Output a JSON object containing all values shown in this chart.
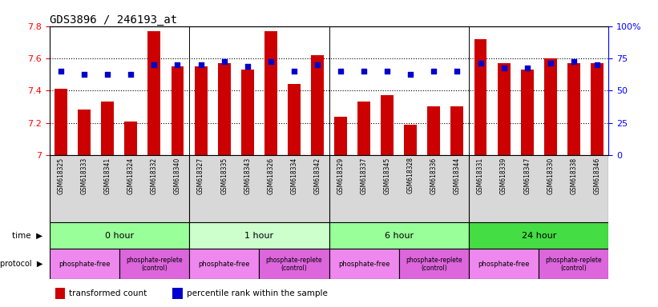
{
  "title": "GDS3896 / 246193_at",
  "samples": [
    "GSM618325",
    "GSM618333",
    "GSM618341",
    "GSM618324",
    "GSM618332",
    "GSM618340",
    "GSM618327",
    "GSM618335",
    "GSM618343",
    "GSM618326",
    "GSM618334",
    "GSM618342",
    "GSM618329",
    "GSM618337",
    "GSM618345",
    "GSM618328",
    "GSM618336",
    "GSM618344",
    "GSM618331",
    "GSM618339",
    "GSM618347",
    "GSM618330",
    "GSM618338",
    "GSM618346"
  ],
  "bar_values": [
    7.41,
    7.28,
    7.33,
    7.21,
    7.77,
    7.55,
    7.55,
    7.57,
    7.53,
    7.77,
    7.44,
    7.62,
    7.24,
    7.33,
    7.37,
    7.19,
    7.3,
    7.3,
    7.72,
    7.57,
    7.53,
    7.6,
    7.57,
    7.57
  ],
  "dot_values": [
    7.52,
    7.5,
    7.5,
    7.5,
    7.56,
    7.56,
    7.56,
    7.58,
    7.55,
    7.58,
    7.52,
    7.56,
    7.52,
    7.52,
    7.52,
    7.5,
    7.52,
    7.52,
    7.57,
    7.54,
    7.54,
    7.57,
    7.58,
    7.56
  ],
  "ylim": [
    7.0,
    7.8
  ],
  "yticks": [
    7.0,
    7.2,
    7.4,
    7.6,
    7.8
  ],
  "ytick_labels": [
    "7",
    "7.2",
    "7.4",
    "7.6",
    "7.8"
  ],
  "right_yticks": [
    0,
    25,
    50,
    75,
    100
  ],
  "right_ytick_labels": [
    "0",
    "25",
    "50",
    "75",
    "100%"
  ],
  "bar_color": "#CC0000",
  "dot_color": "#0000CC",
  "bg_color": "#FFFFFF",
  "time_groups": [
    {
      "label": "0 hour",
      "start": 0,
      "end": 6,
      "color": "#99FF99"
    },
    {
      "label": "1 hour",
      "start": 6,
      "end": 12,
      "color": "#CCFFCC"
    },
    {
      "label": "6 hour",
      "start": 12,
      "end": 18,
      "color": "#99FF99"
    },
    {
      "label": "24 hour",
      "start": 18,
      "end": 24,
      "color": "#44DD44"
    }
  ],
  "protocol_groups": [
    {
      "label": "phosphate-free",
      "start": 0,
      "end": 3,
      "color": "#EE88EE",
      "fontsize": 6
    },
    {
      "label": "phosphate-replete\n(control)",
      "start": 3,
      "end": 6,
      "color": "#DD66DD",
      "fontsize": 5.5
    },
    {
      "label": "phosphate-free",
      "start": 6,
      "end": 9,
      "color": "#EE88EE",
      "fontsize": 6
    },
    {
      "label": "phosphate-replete\n(control)",
      "start": 9,
      "end": 12,
      "color": "#DD66DD",
      "fontsize": 5.5
    },
    {
      "label": "phosphate-free",
      "start": 12,
      "end": 15,
      "color": "#EE88EE",
      "fontsize": 6
    },
    {
      "label": "phosphate-replete\n(control)",
      "start": 15,
      "end": 18,
      "color": "#DD66DD",
      "fontsize": 5.5
    },
    {
      "label": "phosphate-free",
      "start": 18,
      "end": 21,
      "color": "#EE88EE",
      "fontsize": 6
    },
    {
      "label": "phosphate-replete\n(control)",
      "start": 21,
      "end": 24,
      "color": "#DD66DD",
      "fontsize": 5.5
    }
  ],
  "legend_items": [
    {
      "color": "#CC0000",
      "label": "transformed count"
    },
    {
      "color": "#0000CC",
      "label": "percentile rank within the sample"
    }
  ],
  "group_boundaries": [
    6,
    12,
    18
  ],
  "time_label": "time",
  "protocol_label": "growth protocol"
}
